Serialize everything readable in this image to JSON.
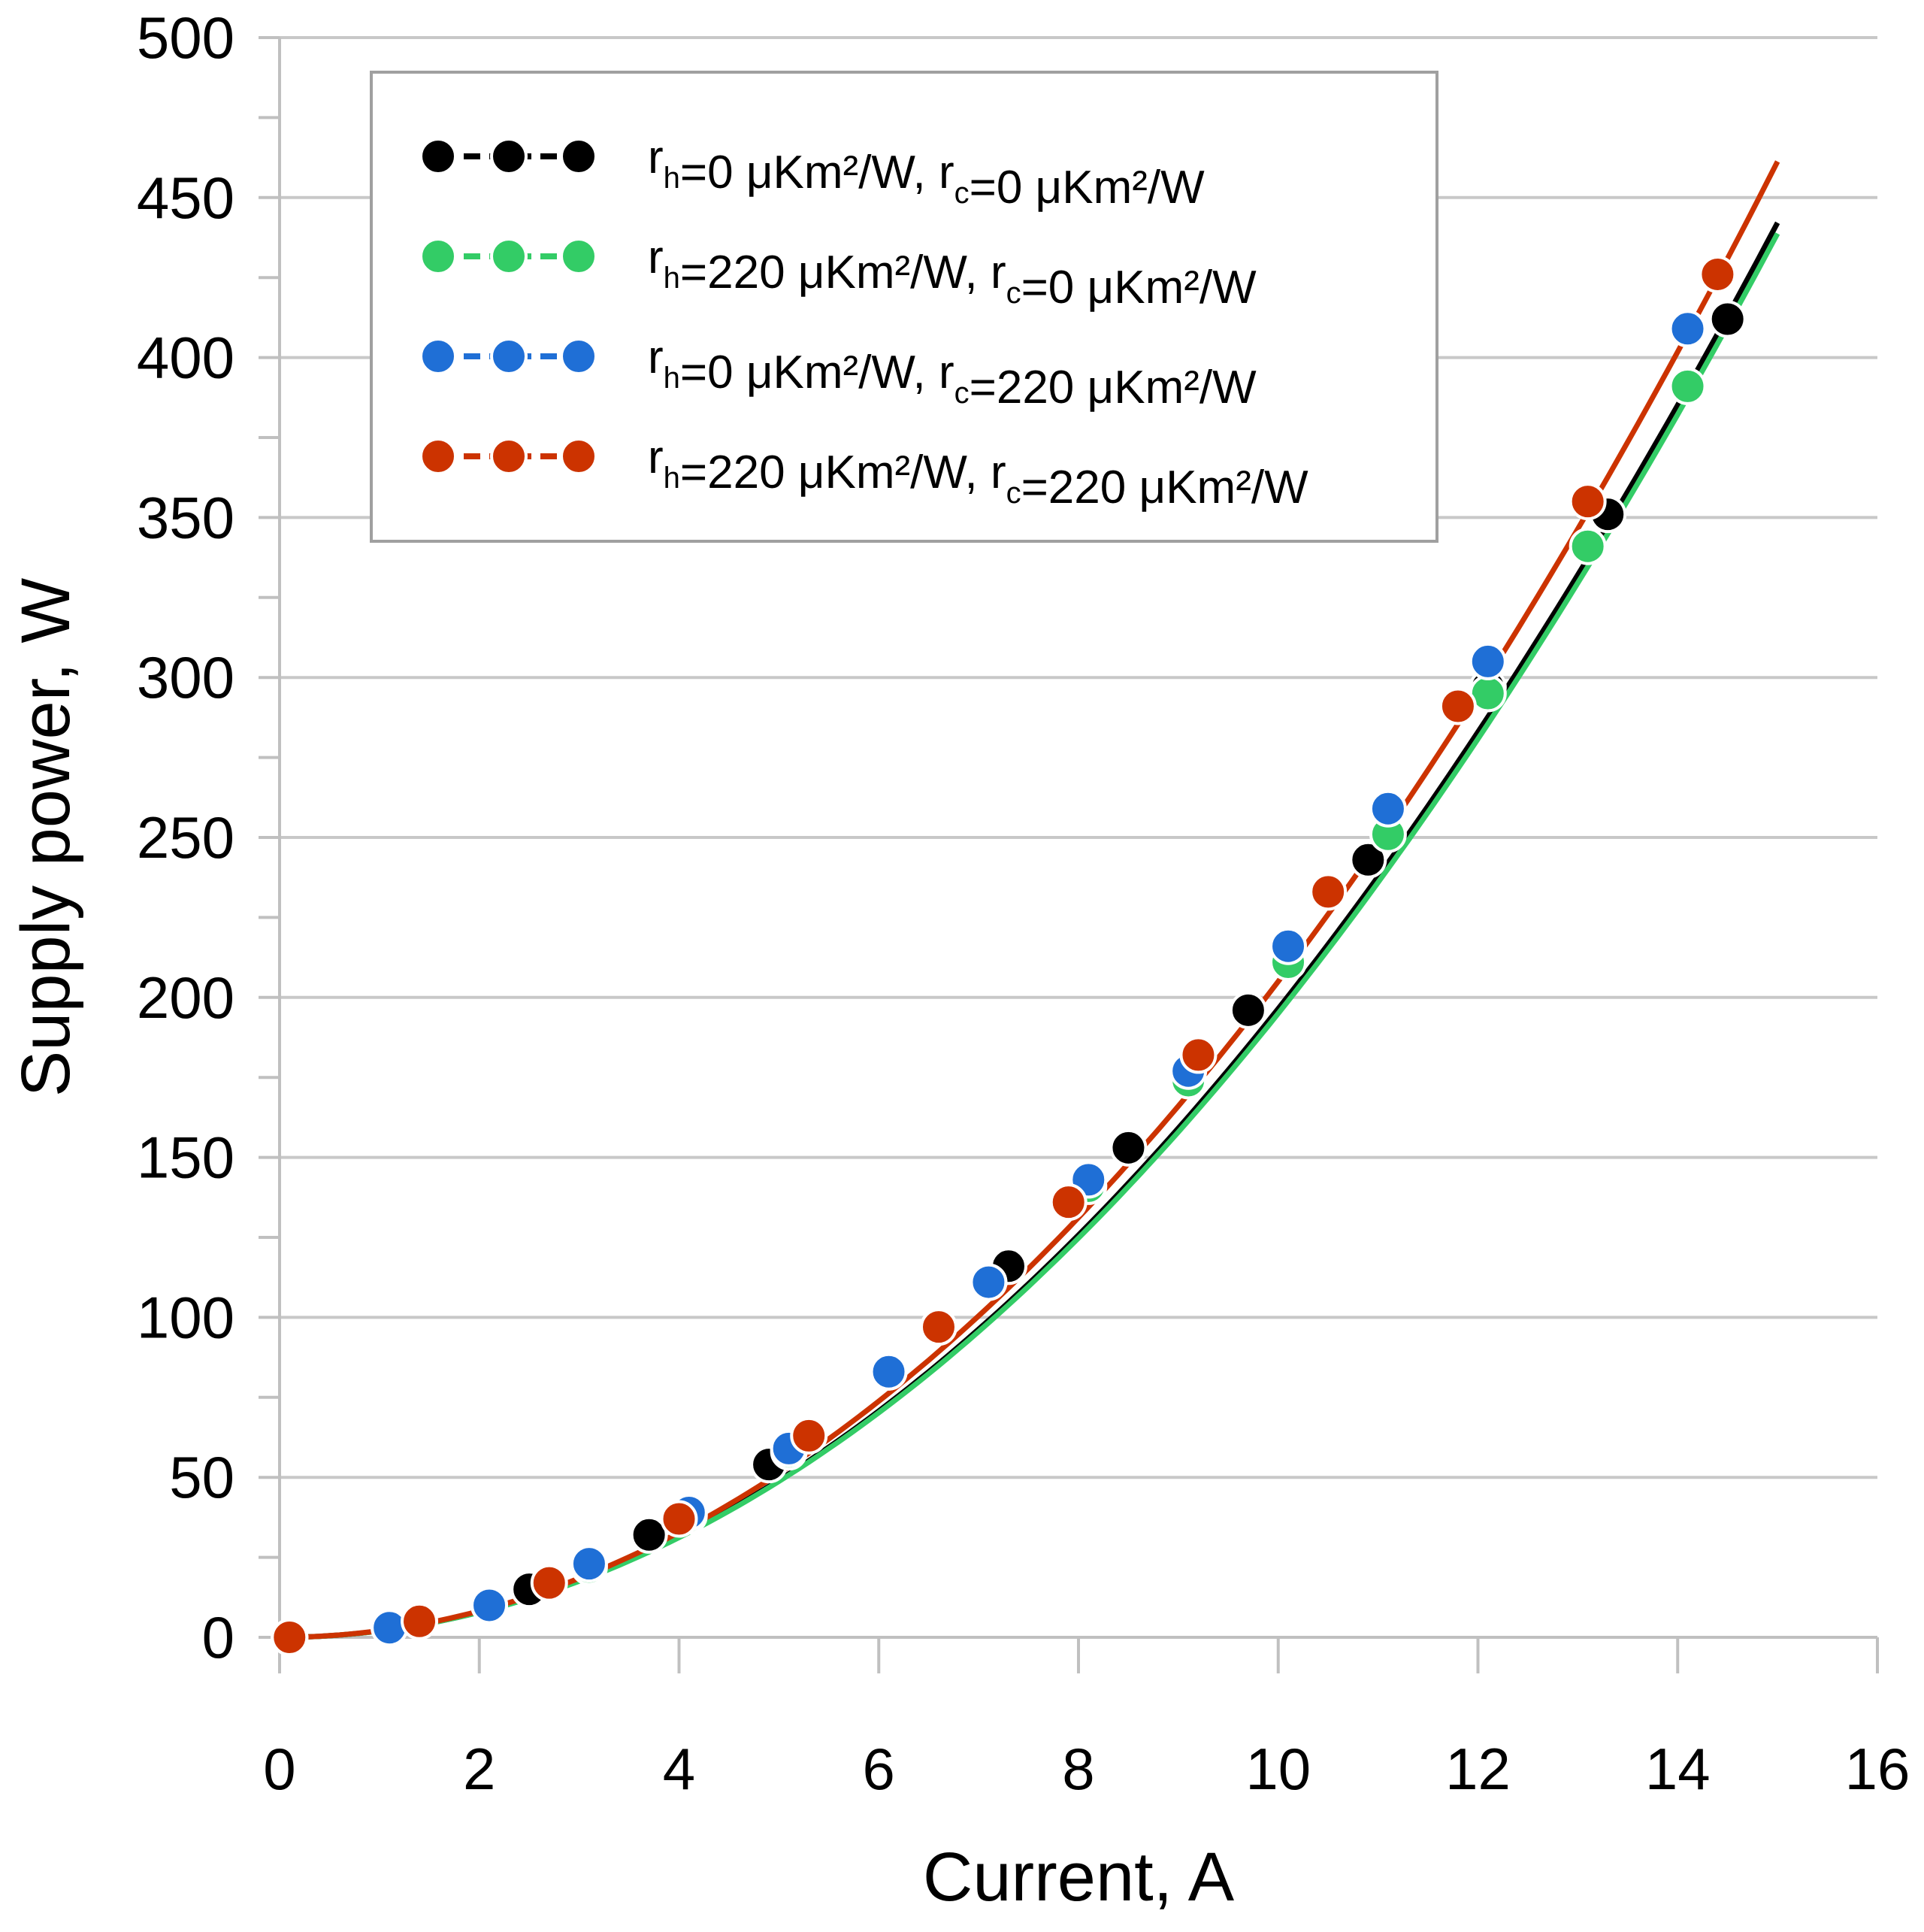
{
  "chart_data": {
    "type": "line",
    "title": "",
    "xlabel": "Current, A",
    "ylabel": "Supply power, W",
    "xlim": [
      0,
      16
    ],
    "ylim": [
      0,
      500
    ],
    "xticks": [
      "0",
      "2",
      "4",
      "6",
      "8",
      "10",
      "12",
      "14",
      "16"
    ],
    "yticks": [
      "0",
      "50",
      "100",
      "150",
      "200",
      "250",
      "300",
      "350",
      "400",
      "450",
      "500"
    ],
    "grid": "horizontal",
    "legend_position": "top-left",
    "series": [
      {
        "name": "rh=0 μKm²/W, rc=0 μKm²/W",
        "legend": {
          "r1": "r",
          "s1": "h",
          "m1": "=0 μKm²/W, ",
          "r2": "r",
          "s2": "c",
          "m2": "=0 μKm²/W"
        },
        "color": "#000000",
        "x": [
          0.1,
          1.1,
          2.5,
          3.7,
          4.9,
          6.1,
          7.3,
          8.5,
          9.7,
          10.9,
          12.1,
          13.3,
          14.5
        ],
        "y": [
          0,
          3,
          15,
          32,
          54,
          83,
          116,
          153,
          196,
          243,
          297,
          351,
          412
        ],
        "fit_k": 1.965
      },
      {
        "name": "rh=220 μKm²/W, rc=0 μKm²/W",
        "legend": {
          "r1": "r",
          "s1": "h",
          "m1": "=220 μKm²/W, ",
          "r2": "r",
          "s2": "c",
          "m2": "=0 μKm²/W"
        },
        "color": "#33cc66",
        "x": [
          0.1,
          1.1,
          2.1,
          3.1,
          4.1,
          5.1,
          6.1,
          7.1,
          8.1,
          9.1,
          10.1,
          11.1,
          12.1,
          13.1,
          14.1
        ],
        "y": [
          0,
          3,
          10,
          22,
          38,
          58,
          83,
          111,
          141,
          174,
          211,
          251,
          295,
          341,
          391
        ],
        "fit_k": 1.95
      },
      {
        "name": "rh=0 μKm²/W, rc=220 μKm²/W",
        "legend": {
          "r1": "r",
          "s1": "h",
          "m1": "=0 μKm²/W, ",
          "r2": "r",
          "s2": "c",
          "m2": "=220 μKm²/W"
        },
        "color": "#1f6fd6",
        "x": [
          0.1,
          1.1,
          2.1,
          3.1,
          4.1,
          5.1,
          6.1,
          7.1,
          8.1,
          9.1,
          10.1,
          11.1,
          12.1,
          14.1
        ],
        "y": [
          0,
          3,
          10,
          23,
          39,
          59,
          83,
          111,
          143,
          177,
          216,
          259,
          305,
          409
        ],
        "fit_k": 2.05
      },
      {
        "name": "rh=220 μKm²/W, rc=220 μKm²/W",
        "legend": {
          "r1": "r",
          "s1": "h",
          "m1": "=220 μKm²/W, ",
          "r2": "r",
          "s2": "c",
          "m2": "=220 μKm²/W"
        },
        "color": "#cc3300",
        "x": [
          0.1,
          1.4,
          2.7,
          4.0,
          5.3,
          6.6,
          7.9,
          9.2,
          10.5,
          11.8,
          13.1,
          14.4
        ],
        "y": [
          0,
          5,
          17,
          37,
          63,
          97,
          136,
          182,
          233,
          291,
          355,
          426
        ],
        "fit_k": 2.05
      }
    ]
  }
}
